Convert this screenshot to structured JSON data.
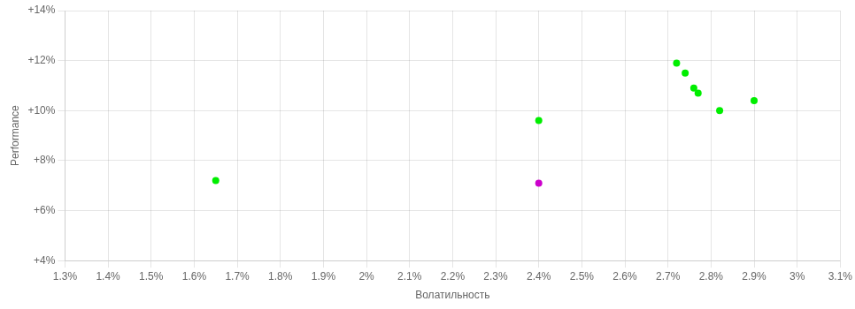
{
  "chart_data": {
    "type": "scatter",
    "xlabel": "Волатильность",
    "ylabel": "Performance",
    "xlim": [
      0.013,
      0.031
    ],
    "ylim": [
      0.04,
      0.14
    ],
    "xticks": [
      {
        "value": 0.013,
        "label": "1.3%"
      },
      {
        "value": 0.014,
        "label": "1.4%"
      },
      {
        "value": 0.015,
        "label": "1.5%"
      },
      {
        "value": 0.016,
        "label": "1.6%"
      },
      {
        "value": 0.017,
        "label": "1.7%"
      },
      {
        "value": 0.018,
        "label": "1.8%"
      },
      {
        "value": 0.019,
        "label": "1.9%"
      },
      {
        "value": 0.02,
        "label": "2%"
      },
      {
        "value": 0.021,
        "label": "2.1%"
      },
      {
        "value": 0.022,
        "label": "2.2%"
      },
      {
        "value": 0.023,
        "label": "2.3%"
      },
      {
        "value": 0.024,
        "label": "2.4%"
      },
      {
        "value": 0.025,
        "label": "2.5%"
      },
      {
        "value": 0.026,
        "label": "2.6%"
      },
      {
        "value": 0.027,
        "label": "2.7%"
      },
      {
        "value": 0.028,
        "label": "2.8%"
      },
      {
        "value": 0.029,
        "label": "2.9%"
      },
      {
        "value": 0.03,
        "label": "3%"
      },
      {
        "value": 0.031,
        "label": "3.1%"
      }
    ],
    "yticks": [
      {
        "value": 0.04,
        "label": "+4%"
      },
      {
        "value": 0.06,
        "label": "+6%"
      },
      {
        "value": 0.08,
        "label": "+8%"
      },
      {
        "value": 0.1,
        "label": "+10%"
      },
      {
        "value": 0.12,
        "label": "+12%"
      },
      {
        "value": 0.14,
        "label": "+14%"
      }
    ],
    "grid": true,
    "series": [
      {
        "color": "#00ee00",
        "x": [
          0.0165,
          0.024,
          0.0272,
          0.0274,
          0.0276,
          0.0277,
          0.0282,
          0.029
        ],
        "values": [
          0.072,
          0.096,
          0.119,
          0.115,
          0.109,
          0.107,
          0.1,
          0.104
        ]
      },
      {
        "color": "#cc00cc",
        "x": [
          0.024
        ],
        "values": [
          0.071
        ]
      }
    ]
  }
}
